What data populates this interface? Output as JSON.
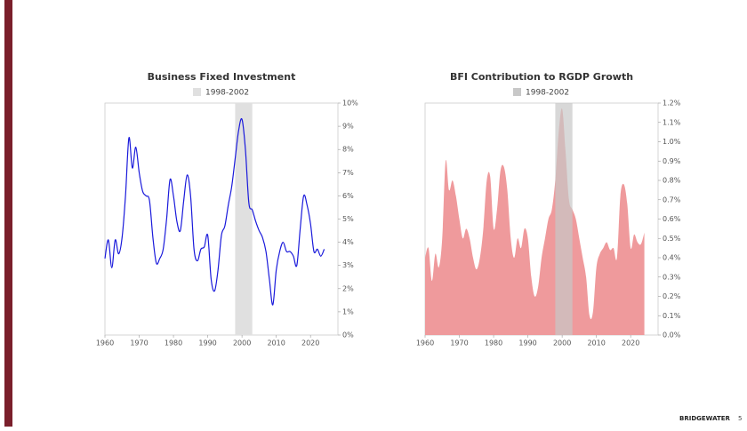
{
  "chart_data": [
    {
      "type": "line",
      "title": "Business Fixed Investment",
      "color": "#1a1adb",
      "shade": {
        "name": "1998-2002",
        "color": "#e0e0e0",
        "x": [
          1998,
          2003
        ]
      },
      "x": [
        1960,
        1961,
        1962,
        1963,
        1964,
        1965,
        1966,
        1967,
        1968,
        1969,
        1970,
        1971,
        1972,
        1973,
        1974,
        1975,
        1976,
        1977,
        1978,
        1979,
        1980,
        1981,
        1982,
        1983,
        1984,
        1985,
        1986,
        1987,
        1988,
        1989,
        1990,
        1991,
        1992,
        1993,
        1994,
        1995,
        1996,
        1997,
        1998,
        1999,
        2000,
        2001,
        2002,
        2003,
        2004,
        2005,
        2006,
        2007,
        2008,
        2009,
        2010,
        2011,
        2012,
        2013,
        2014,
        2015,
        2016,
        2017,
        2018,
        2019,
        2020,
        2021,
        2022,
        2023,
        2024
      ],
      "values": [
        3.3,
        4.1,
        2.9,
        4.1,
        3.5,
        4.2,
        6.0,
        8.5,
        7.2,
        8.1,
        7.0,
        6.2,
        6.0,
        5.8,
        4.2,
        3.1,
        3.3,
        3.7,
        5.0,
        6.7,
        6.0,
        4.9,
        4.5,
        5.8,
        6.9,
        6.0,
        3.7,
        3.2,
        3.7,
        3.8,
        4.3,
        2.4,
        1.9,
        2.8,
        4.3,
        4.7,
        5.6,
        6.4,
        7.6,
        8.8,
        9.3,
        8.0,
        5.7,
        5.4,
        4.9,
        4.5,
        4.2,
        3.6,
        2.4,
        1.3,
        2.8,
        3.6,
        4.0,
        3.6,
        3.6,
        3.4,
        3.0,
        4.6,
        6.0,
        5.6,
        4.8,
        3.6,
        3.7,
        3.4,
        3.7
      ],
      "xlim": [
        1960,
        2028
      ],
      "xticks": [
        1960,
        1970,
        1980,
        1990,
        2000,
        2010,
        2020
      ],
      "ylim": [
        0,
        10
      ],
      "yticks": [
        {
          "value": 0,
          "label": "0%"
        },
        {
          "value": 1,
          "label": "1%"
        },
        {
          "value": 2,
          "label": "2%"
        },
        {
          "value": 3,
          "label": "3%"
        },
        {
          "value": 4,
          "label": "4%"
        },
        {
          "value": 5,
          "label": "5%"
        },
        {
          "value": 6,
          "label": "6%"
        },
        {
          "value": 7,
          "label": "7%"
        },
        {
          "value": 8,
          "label": "8%"
        },
        {
          "value": 9,
          "label": "9%"
        },
        {
          "value": 10,
          "label": "10%"
        }
      ]
    },
    {
      "type": "area",
      "title": "BFI Contribution to RGDP Growth",
      "color": "#ef9a9c",
      "shade": {
        "name": "1998-2002",
        "color": "#c8c8c8",
        "x": [
          1998,
          2003
        ]
      },
      "x": [
        1960,
        1961,
        1962,
        1963,
        1964,
        1965,
        1966,
        1967,
        1968,
        1969,
        1970,
        1971,
        1972,
        1973,
        1974,
        1975,
        1976,
        1977,
        1978,
        1979,
        1980,
        1981,
        1982,
        1983,
        1984,
        1985,
        1986,
        1987,
        1988,
        1989,
        1990,
        1991,
        1992,
        1993,
        1994,
        1995,
        1996,
        1997,
        1998,
        1999,
        2000,
        2001,
        2002,
        2003,
        2004,
        2005,
        2006,
        2007,
        2008,
        2009,
        2010,
        2011,
        2012,
        2013,
        2014,
        2015,
        2016,
        2017,
        2018,
        2019,
        2020,
        2021,
        2022,
        2023,
        2024
      ],
      "values": [
        0.4,
        0.45,
        0.28,
        0.42,
        0.35,
        0.5,
        0.9,
        0.75,
        0.8,
        0.72,
        0.6,
        0.5,
        0.55,
        0.5,
        0.4,
        0.34,
        0.4,
        0.55,
        0.8,
        0.82,
        0.55,
        0.65,
        0.85,
        0.87,
        0.75,
        0.5,
        0.4,
        0.5,
        0.45,
        0.55,
        0.5,
        0.3,
        0.2,
        0.25,
        0.4,
        0.5,
        0.6,
        0.65,
        0.8,
        1.05,
        1.17,
        0.95,
        0.7,
        0.65,
        0.6,
        0.5,
        0.4,
        0.3,
        0.1,
        0.12,
        0.35,
        0.42,
        0.45,
        0.48,
        0.44,
        0.45,
        0.4,
        0.72,
        0.78,
        0.68,
        0.45,
        0.52,
        0.48,
        0.47,
        0.53
      ],
      "xlim": [
        1960,
        2028
      ],
      "xticks": [
        1960,
        1970,
        1980,
        1990,
        2000,
        2010,
        2020
      ],
      "ylim": [
        0,
        1.2
      ],
      "yticks": [
        {
          "value": 0,
          "label": "0.0%"
        },
        {
          "value": 0.1,
          "label": "0.1%"
        },
        {
          "value": 0.2,
          "label": "0.2%"
        },
        {
          "value": 0.3,
          "label": "0.3%"
        },
        {
          "value": 0.4,
          "label": "0.4%"
        },
        {
          "value": 0.5,
          "label": "0.5%"
        },
        {
          "value": 0.6,
          "label": "0.6%"
        },
        {
          "value": 0.7,
          "label": "0.7%"
        },
        {
          "value": 0.8,
          "label": "0.8%"
        },
        {
          "value": 0.9,
          "label": "0.9%"
        },
        {
          "value": 1.0,
          "label": "1.0%"
        },
        {
          "value": 1.1,
          "label": "1.1%"
        },
        {
          "value": 1.2,
          "label": "1.2%"
        }
      ]
    }
  ],
  "footer": {
    "brand": "BRIDGEWATER",
    "page": "5"
  }
}
